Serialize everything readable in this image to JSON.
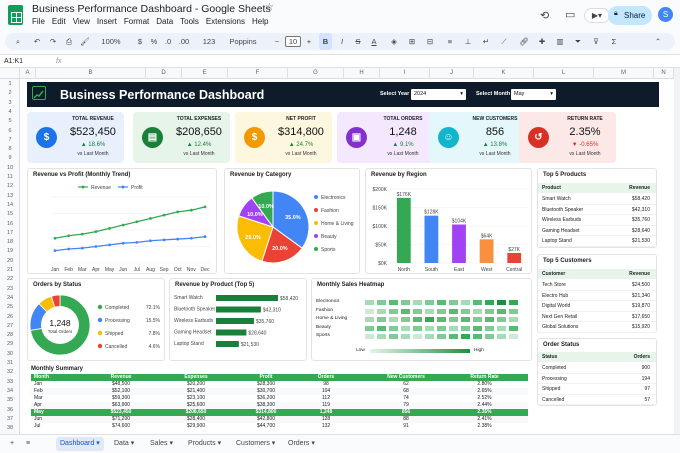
{
  "app": {
    "title": "Business Performance Dashboard - Google Sheets",
    "menus": [
      "File",
      "Edit",
      "View",
      "Insert",
      "Format",
      "Data",
      "Tools",
      "Extensions",
      "Help"
    ],
    "share_label": "Share",
    "avatar_letter": "S"
  },
  "toolbar": {
    "zoom": "100%",
    "currency": "$",
    "percent": "%",
    "dec_less": ".0",
    "dec_more": ".00",
    "numfmt": "123",
    "font": "Poppins",
    "font_size": "10",
    "bold": "B"
  },
  "formula": {
    "namebox": "A1:K1",
    "fx": "fx"
  },
  "columns": [
    "A",
    "B",
    "D",
    "E",
    "F",
    "G",
    "H",
    "I",
    "J",
    "K",
    "L",
    "M",
    "N",
    "O",
    "P",
    "Q"
  ],
  "rows": [
    "1",
    "2",
    "3",
    "4",
    "5",
    "6",
    "7",
    "8",
    "9",
    "10",
    "11",
    "12",
    "13",
    "14",
    "15",
    "16",
    "17",
    "18",
    "19",
    "20",
    "21",
    "22",
    "23",
    "24",
    "25",
    "26",
    "27",
    "28",
    "29",
    "30",
    "31",
    "32",
    "33",
    "34",
    "35",
    "36",
    "37",
    "38"
  ],
  "banner": {
    "title": "Business Performance Dashboard",
    "year_label": "Select Year",
    "year_value": "2024",
    "month_label": "Select Month",
    "month_value": "May"
  },
  "kpis": [
    {
      "label": "TOTAL REVENUE",
      "value": "$523,450",
      "change": "▲ 18.6%",
      "sub": "vs Last Month",
      "color": "#1a73e8",
      "bg": "#e8f0fe",
      "icon": "$"
    },
    {
      "label": "TOTAL EXPENSES",
      "value": "$208,650",
      "change": "▲ 12.4%",
      "sub": "vs Last Month",
      "color": "#188038",
      "bg": "#e6f4ea",
      "icon": "▤"
    },
    {
      "label": "NET PROFIT",
      "value": "$314,800",
      "change": "▲ 24.7%",
      "sub": "vs Last Month",
      "color": "#f29900",
      "bg": "#fef7e0",
      "icon": "$"
    },
    {
      "label": "TOTAL ORDERS",
      "value": "1,248",
      "change": "▲ 9.1%",
      "sub": "vs Last Month",
      "color": "#8430ce",
      "bg": "#f3e8fd",
      "icon": "▣"
    },
    {
      "label": "NEW CUSTOMERS",
      "value": "856",
      "change": "▲ 13.8%",
      "sub": "vs Last Month",
      "color": "#12b5cb",
      "bg": "#e4f7fb",
      "icon": "☺"
    },
    {
      "label": "RETURN RATE",
      "value": "2.35%",
      "change": "▼ -0.65%",
      "sub": "vs Last Month",
      "color": "#d93025",
      "bg": "#fce8e6",
      "icon": "↺"
    }
  ],
  "panels": {
    "trend": "Revenue vs Profit (Monthly Trend)",
    "category": "Revenue by Category",
    "region": "Revenue by Region",
    "top_products": "Top 5 Products",
    "orders_status": "Orders by Status",
    "by_product": "Revenue by Product (Top 5)",
    "heatmap": "Monthly Sales Heatmap",
    "top_customers": "Top 5 Customers",
    "order_status": "Order Status",
    "monthly": "Monthly Summary"
  },
  "colors": {
    "revenue": "#34a853",
    "profit": "#4285f4"
  },
  "chart_data": [
    {
      "type": "line",
      "title": "Revenue vs Profit (Monthly Trend)",
      "categories": [
        "Jan",
        "Feb",
        "Mar",
        "Apr",
        "May",
        "Jun",
        "Jul",
        "Aug",
        "Sep",
        "Oct",
        "Nov",
        "Dec"
      ],
      "series": [
        {
          "name": "Revenue",
          "values": [
            30,
            33,
            35,
            38,
            42,
            46,
            50,
            54,
            58,
            62,
            64,
            68
          ]
        },
        {
          "name": "Profit",
          "values": [
            15,
            17,
            18,
            20,
            22,
            24,
            25,
            27,
            28,
            29,
            30,
            32
          ]
        }
      ],
      "ylim": [
        0,
        80
      ],
      "legend": "top"
    },
    {
      "type": "pie",
      "title": "Revenue by Category",
      "labels": [
        "Electronics",
        "Fashion",
        "Home & Living",
        "Beauty",
        "Sports"
      ],
      "values": [
        35,
        20,
        25,
        10,
        10
      ],
      "data_labels": [
        "35.0%",
        "20.0%",
        "25.0%",
        "10.0%",
        "10.0%"
      ],
      "colors": [
        "#4285f4",
        "#ea4335",
        "#fbbc04",
        "#a142f4",
        "#34a853"
      ]
    },
    {
      "type": "bar",
      "title": "Revenue by Region",
      "categories": [
        "North",
        "South",
        "East",
        "West",
        "Central"
      ],
      "values": [
        176,
        128,
        104,
        64,
        27
      ],
      "data_labels": [
        "$176K",
        "$128K",
        "$104K",
        "$64K",
        "$27K"
      ],
      "colors": [
        "#34a853",
        "#4285f4",
        "#a142f4",
        "#fa903e",
        "#ea4335"
      ],
      "ylim": [
        0,
        200
      ]
    },
    {
      "type": "pie",
      "title": "Orders by Status",
      "labels": [
        "Completed",
        "Processing",
        "Shipped",
        "Cancelled"
      ],
      "values": [
        72.1,
        15.5,
        7.8,
        4.6
      ],
      "data_labels": [
        "72.1%",
        "15.5%",
        "7.8%",
        "4.6%"
      ],
      "center_value": "1,248",
      "center_label": "Total Orders",
      "colors": [
        "#34a853",
        "#4285f4",
        "#fbbc04",
        "#ea4335"
      ]
    },
    {
      "type": "bar",
      "title": "Revenue by Product (Top 5)",
      "categories": [
        "Smart Watch",
        "Bluetooth Speaker",
        "Wireless Earbuds",
        "Gaming Headset",
        "Laptop Stand"
      ],
      "values": [
        58.42,
        42.31,
        35.76,
        28.64,
        21.53
      ],
      "data_labels": [
        "$58,420",
        "$42,310",
        "$35,760",
        "$28,640",
        "$21,530"
      ]
    },
    {
      "type": "heatmap",
      "title": "Monthly Sales Heatmap",
      "rows": [
        "Electronics",
        "Fashion",
        "Home & Living",
        "Beauty",
        "Sports"
      ],
      "values": [
        [
          3,
          4,
          5,
          4,
          3,
          4,
          5,
          4,
          3,
          5,
          6,
          7,
          6
        ],
        [
          2,
          3,
          4,
          5,
          4,
          3,
          4,
          5,
          4,
          3,
          4,
          5,
          4
        ],
        [
          3,
          4,
          3,
          4,
          5,
          6,
          5,
          4,
          5,
          4,
          5,
          4,
          3
        ],
        [
          4,
          5,
          4,
          3,
          4,
          3,
          4,
          3,
          4,
          5,
          4,
          3,
          5
        ],
        [
          2,
          3,
          4,
          3,
          2,
          3,
          4,
          5,
          6,
          5,
          4,
          3,
          2
        ]
      ],
      "legend_low": "Low",
      "legend_high": "High"
    },
    {
      "type": "table",
      "title": "Monthly Summary",
      "columns": [
        "Month",
        "Revenue",
        "Expenses",
        "Profit",
        "Orders",
        "New Customers",
        "Return Rate"
      ],
      "rows": [
        [
          "Jan",
          "$48,500",
          "$20,200",
          "$28,300",
          "98",
          "62",
          "2.80%"
        ],
        [
          "Feb",
          "$52,100",
          "$21,400",
          "$30,700",
          "104",
          "68",
          "2.65%"
        ],
        [
          "Mar",
          "$59,300",
          "$23,100",
          "$36,200",
          "112",
          "74",
          "2.52%"
        ],
        [
          "Apr",
          "$63,900",
          "$25,600",
          "$38,300",
          "119",
          "79",
          "2.44%"
        ],
        [
          "May",
          "$523,450",
          "$208,650",
          "$314,800",
          "1,248",
          "856",
          "2.35%"
        ],
        [
          "Jun",
          "$71,200",
          "$28,400",
          "$42,800",
          "128",
          "88",
          "2.41%"
        ],
        [
          "Jul",
          "$74,600",
          "$29,900",
          "$44,700",
          "132",
          "91",
          "2.38%"
        ]
      ]
    }
  ],
  "top_products": {
    "headers": [
      "Product",
      "Revenue"
    ],
    "rows": [
      [
        "Smart Watch",
        "$58,420"
      ],
      [
        "Bluetooth Speaker",
        "$42,310"
      ],
      [
        "Wireless Earbuds",
        "$35,760"
      ],
      [
        "Gaming Headset",
        "$28,640"
      ],
      [
        "Laptop Stand",
        "$21,530"
      ]
    ]
  },
  "top_customers": {
    "headers": [
      "Customer",
      "Revenue"
    ],
    "rows": [
      [
        "Tech Store",
        "$24,500"
      ],
      [
        "Electro Hub",
        "$21,340"
      ],
      [
        "Digital World",
        "$19,870"
      ],
      [
        "Next Gen Retail",
        "$17,650"
      ],
      [
        "Global Solutions",
        "$15,920"
      ]
    ]
  },
  "order_status": {
    "headers": [
      "Status",
      "Orders"
    ],
    "rows": [
      [
        "Completed",
        "900"
      ],
      [
        "Processing",
        "194"
      ],
      [
        "Shipped",
        "97"
      ],
      [
        "Cancelled",
        "57"
      ]
    ]
  },
  "tabs": [
    "Dashboard",
    "Data",
    "Sales",
    "Products",
    "Customers",
    "Orders"
  ]
}
